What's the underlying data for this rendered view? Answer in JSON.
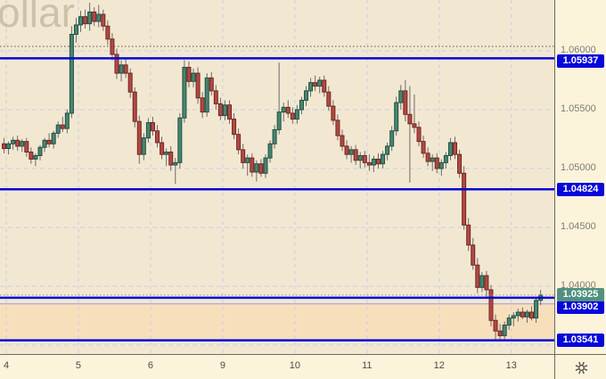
{
  "watermark": {
    "text": "ollar"
  },
  "colors": {
    "chart_bg": "#f2e8d2",
    "axis_bg": "#fbf3da",
    "grid": "#c9cede",
    "candle_up_fill": "#4a8471",
    "candle_up_border": "#1e5243",
    "candle_down_fill": "#b04a45",
    "candle_down_border": "#76241f",
    "wick": "#6b6b6b",
    "level_blue": "#0707dc",
    "dotted_level": "#55544c",
    "current_line": "#97937f",
    "current_label_bg": "#519180",
    "zone_fill": "#f8dfbc",
    "zone_border": "#9b9bd0",
    "axis_text": "#7d7d78",
    "time_text": "#4e4e46",
    "icon_color": "#55554e"
  },
  "chart_data": {
    "type": "candlestick",
    "title": "",
    "ylim": [
      1.034242,
      1.064318
    ],
    "y_gridlines": [
      1.06,
      1.055,
      1.05,
      1.045,
      1.04,
      1.035
    ],
    "y_tick_labels": [
      {
        "price": 1.06,
        "label": "1.06000"
      },
      {
        "price": 1.055,
        "label": "1.05500"
      },
      {
        "price": 1.05,
        "label": "1.05000"
      },
      {
        "price": 1.045,
        "label": "1.04500"
      },
      {
        "price": 1.04,
        "label": "1.04000"
      }
    ],
    "x_axis_labels": [
      {
        "index": 0.5,
        "label": "4"
      },
      {
        "index": 16.5,
        "label": "5"
      },
      {
        "index": 32.5,
        "label": "6"
      },
      {
        "index": 48.5,
        "label": "9"
      },
      {
        "index": 64.5,
        "label": "10"
      },
      {
        "index": 80.5,
        "label": "11"
      },
      {
        "index": 96.5,
        "label": "12"
      },
      {
        "index": 112.5,
        "label": "13"
      }
    ],
    "price_levels": [
      {
        "price": 1.05937,
        "label": "1.05937",
        "style": "solid",
        "label_dy": 3
      },
      {
        "price": 1.04824,
        "label": "1.04824",
        "style": "solid",
        "label_dy": 0
      },
      {
        "price": 1.03902,
        "label": "1.03902",
        "style": "solid",
        "label_dy": 11
      },
      {
        "price": 1.03541,
        "label": "1.03541",
        "style": "solid",
        "label_dy": 0
      },
      {
        "price": 1.06038,
        "label": "",
        "style": "dotted",
        "label_dy": 0
      }
    ],
    "zone": {
      "top": 1.0385,
      "bottom": 1.03541
    },
    "current_price": {
      "price": 1.03925,
      "label": "1.03925"
    },
    "ohlc": [
      [
        1.0521,
        1.0526,
        1.0513,
        1.0517
      ],
      [
        1.0517,
        1.0523,
        1.0512,
        1.0521
      ],
      [
        1.0521,
        1.0527,
        1.0516,
        1.0524
      ],
      [
        1.0524,
        1.0528,
        1.0515,
        1.0519
      ],
      [
        1.0519,
        1.0525,
        1.0514,
        1.0523
      ],
      [
        1.0523,
        1.0526,
        1.051,
        1.0514
      ],
      [
        1.0514,
        1.0518,
        1.0504,
        1.0508
      ],
      [
        1.0508,
        1.0513,
        1.0502,
        1.0511
      ],
      [
        1.0511,
        1.052,
        1.0507,
        1.0518
      ],
      [
        1.0518,
        1.0526,
        1.0514,
        1.0524
      ],
      [
        1.0524,
        1.053,
        1.0518,
        1.0521
      ],
      [
        1.0521,
        1.0532,
        1.0517,
        1.053
      ],
      [
        1.053,
        1.054,
        1.0526,
        1.0537
      ],
      [
        1.0537,
        1.0544,
        1.0531,
        1.0534
      ],
      [
        1.0534,
        1.055,
        1.053,
        1.0547
      ],
      [
        1.0547,
        1.0621,
        1.0543,
        1.0614
      ],
      [
        1.0614,
        1.0628,
        1.0607,
        1.0622
      ],
      [
        1.0622,
        1.0634,
        1.0616,
        1.0629
      ],
      [
        1.0629,
        1.0635,
        1.0619,
        1.0623
      ],
      [
        1.0623,
        1.0641,
        1.0617,
        1.0633
      ],
      [
        1.0633,
        1.0637,
        1.0621,
        1.0625
      ],
      [
        1.0625,
        1.0639,
        1.062,
        1.0631
      ],
      [
        1.0631,
        1.0635,
        1.0617,
        1.0621
      ],
      [
        1.0621,
        1.0626,
        1.0605,
        1.061
      ],
      [
        1.061,
        1.0615,
        1.0592,
        1.0597
      ],
      [
        1.0597,
        1.0602,
        1.0576,
        1.0581
      ],
      [
        1.0581,
        1.0592,
        1.0574,
        1.0588
      ],
      [
        1.0588,
        1.0593,
        1.0577,
        1.0581
      ],
      [
        1.0581,
        1.0585,
        1.056,
        1.0565
      ],
      [
        1.0565,
        1.0569,
        1.0535,
        1.054
      ],
      [
        1.054,
        1.0545,
        1.0504,
        1.0512
      ],
      [
        1.0512,
        1.053,
        1.0507,
        1.0526
      ],
      [
        1.0526,
        1.0543,
        1.0522,
        1.0539
      ],
      [
        1.0539,
        1.0544,
        1.0528,
        1.0532
      ],
      [
        1.0532,
        1.0537,
        1.0518,
        1.0522
      ],
      [
        1.0522,
        1.0527,
        1.0508,
        1.0512
      ],
      [
        1.0512,
        1.0517,
        1.0502,
        1.0514
      ],
      [
        1.0514,
        1.0519,
        1.0498,
        1.0503
      ],
      [
        1.0503,
        1.0509,
        1.0487,
        1.0505
      ],
      [
        1.0505,
        1.0547,
        1.05,
        1.0543
      ],
      [
        1.0543,
        1.0592,
        1.0539,
        1.0586
      ],
      [
        1.0586,
        1.0591,
        1.0569,
        1.0574
      ],
      [
        1.0574,
        1.0585,
        1.0569,
        1.0581
      ],
      [
        1.0581,
        1.0586,
        1.0555,
        1.056
      ],
      [
        1.056,
        1.0565,
        1.0543,
        1.0548
      ],
      [
        1.0548,
        1.0581,
        1.0544,
        1.0577
      ],
      [
        1.0577,
        1.0582,
        1.0562,
        1.0566
      ],
      [
        1.0566,
        1.0571,
        1.055,
        1.0555
      ],
      [
        1.0555,
        1.056,
        1.0541,
        1.0545
      ],
      [
        1.0545,
        1.0558,
        1.0541,
        1.0554
      ],
      [
        1.0554,
        1.0558,
        1.0538,
        1.0542
      ],
      [
        1.0542,
        1.0547,
        1.0525,
        1.0529
      ],
      [
        1.0529,
        1.0534,
        1.0512,
        1.0516
      ],
      [
        1.0516,
        1.0521,
        1.05,
        1.0505
      ],
      [
        1.0505,
        1.0512,
        1.0494,
        1.0509
      ],
      [
        1.0509,
        1.0513,
        1.0493,
        1.0497
      ],
      [
        1.0497,
        1.0507,
        1.0489,
        1.0504
      ],
      [
        1.0504,
        1.0508,
        1.0493,
        1.0496
      ],
      [
        1.0496,
        1.0512,
        1.0492,
        1.0509
      ],
      [
        1.0509,
        1.0524,
        1.0505,
        1.0521
      ],
      [
        1.0521,
        1.0537,
        1.0517,
        1.0533
      ],
      [
        1.0533,
        1.059,
        1.0529,
        1.0548
      ],
      [
        1.0548,
        1.0556,
        1.054,
        1.0552
      ],
      [
        1.0552,
        1.0558,
        1.0543,
        1.0547
      ],
      [
        1.0547,
        1.0552,
        1.0538,
        1.0542
      ],
      [
        1.0542,
        1.0554,
        1.0538,
        1.055
      ],
      [
        1.055,
        1.0561,
        1.0546,
        1.0558
      ],
      [
        1.0558,
        1.057,
        1.0553,
        1.0566
      ],
      [
        1.0566,
        1.0577,
        1.0561,
        1.0573
      ],
      [
        1.0573,
        1.0579,
        1.0566,
        1.057
      ],
      [
        1.057,
        1.0578,
        1.0564,
        1.0575
      ],
      [
        1.0575,
        1.0579,
        1.0561,
        1.0565
      ],
      [
        1.0565,
        1.057,
        1.0549,
        1.0553
      ],
      [
        1.0553,
        1.0558,
        1.0537,
        1.0541
      ],
      [
        1.0541,
        1.0546,
        1.0524,
        1.0528
      ],
      [
        1.0528,
        1.0533,
        1.0515,
        1.0519
      ],
      [
        1.0519,
        1.0524,
        1.0508,
        1.0512
      ],
      [
        1.0512,
        1.0519,
        1.0505,
        1.0516
      ],
      [
        1.0516,
        1.052,
        1.0503,
        1.0507
      ],
      [
        1.0507,
        1.0514,
        1.05,
        1.0511
      ],
      [
        1.0511,
        1.0515,
        1.0501,
        1.0505
      ],
      [
        1.0505,
        1.0512,
        1.0498,
        1.0503
      ],
      [
        1.0503,
        1.0511,
        1.0497,
        1.0508
      ],
      [
        1.0508,
        1.0513,
        1.05,
        1.0504
      ],
      [
        1.0504,
        1.0515,
        1.05,
        1.0512
      ],
      [
        1.0512,
        1.0522,
        1.0507,
        1.0519
      ],
      [
        1.0519,
        1.0536,
        1.0515,
        1.0532
      ],
      [
        1.0532,
        1.0561,
        1.0528,
        1.0556
      ],
      [
        1.0556,
        1.0571,
        1.055,
        1.0566
      ],
      [
        1.0566,
        1.0575,
        1.054,
        1.0546
      ],
      [
        1.0546,
        1.057,
        1.0488,
        1.0538
      ],
      [
        1.0538,
        1.0563,
        1.053,
        1.0535
      ],
      [
        1.0535,
        1.054,
        1.0519,
        1.0523
      ],
      [
        1.0523,
        1.0528,
        1.0509,
        1.0513
      ],
      [
        1.0513,
        1.0518,
        1.0502,
        1.0506
      ],
      [
        1.0506,
        1.0512,
        1.0498,
        1.0509
      ],
      [
        1.0509,
        1.0513,
        1.0496,
        1.05
      ],
      [
        1.05,
        1.0508,
        1.0494,
        1.0505
      ],
      [
        1.0505,
        1.0514,
        1.05,
        1.0511
      ],
      [
        1.0511,
        1.0526,
        1.0507,
        1.0522
      ],
      [
        1.0522,
        1.0527,
        1.0508,
        1.0512
      ],
      [
        1.0512,
        1.0516,
        1.0492,
        1.0496
      ],
      [
        1.0496,
        1.0502,
        1.0448,
        1.0452
      ],
      [
        1.0452,
        1.0458,
        1.043,
        1.0435
      ],
      [
        1.0435,
        1.0441,
        1.0414,
        1.0418
      ],
      [
        1.0418,
        1.0424,
        1.0394,
        1.0399
      ],
      [
        1.0399,
        1.0412,
        1.0395,
        1.0409
      ],
      [
        1.0409,
        1.0413,
        1.039,
        1.0397
      ],
      [
        1.0397,
        1.0401,
        1.0366,
        1.0371
      ],
      [
        1.0371,
        1.0376,
        1.0355,
        1.0362
      ],
      [
        1.0362,
        1.0368,
        1.0354,
        1.0358
      ],
      [
        1.0358,
        1.037,
        1.0355,
        1.0367
      ],
      [
        1.0367,
        1.0376,
        1.0363,
        1.0373
      ],
      [
        1.0373,
        1.0378,
        1.0366,
        1.0375
      ],
      [
        1.0375,
        1.0381,
        1.037,
        1.0378
      ],
      [
        1.0378,
        1.0382,
        1.0372,
        1.0374
      ],
      [
        1.0374,
        1.038,
        1.0369,
        1.0378
      ],
      [
        1.0378,
        1.0383,
        1.0371,
        1.0373
      ],
      [
        1.0373,
        1.039,
        1.0369,
        1.0388
      ],
      [
        1.0388,
        1.0397,
        1.0384,
        1.03925
      ]
    ]
  },
  "toolbar": {
    "settings_icon": "gear-icon"
  }
}
